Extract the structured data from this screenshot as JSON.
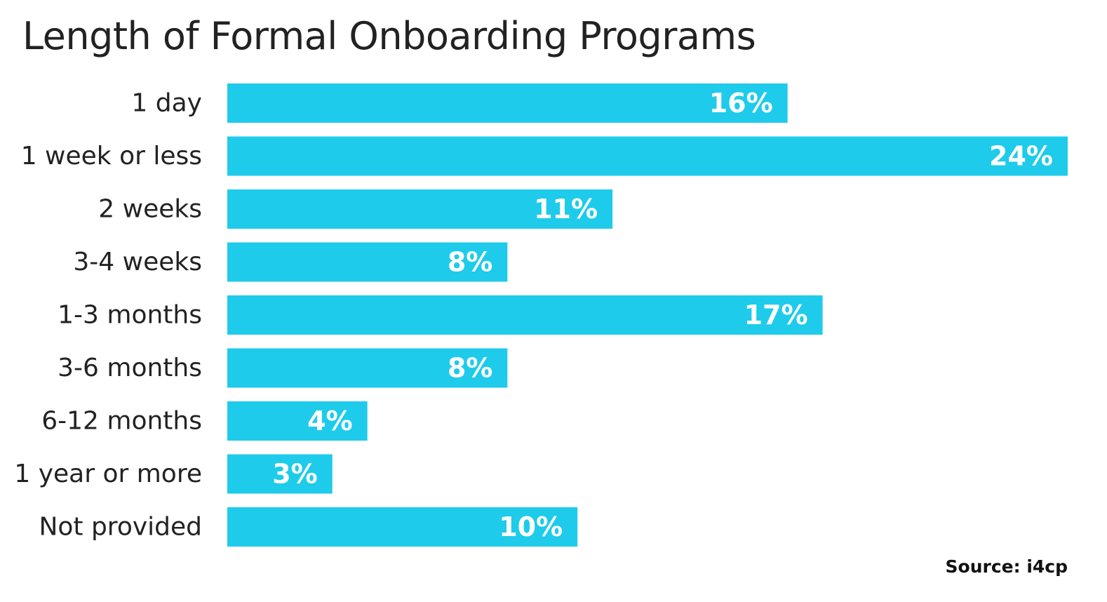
{
  "title": "Length of Formal Onboarding Programs",
  "source": "Source: i4cp",
  "colors": {
    "bar": "#1ECBEA",
    "bar_label": "#FFFFFF",
    "text": "#222222"
  },
  "chart_data": {
    "type": "bar",
    "orientation": "horizontal",
    "title": "Length of Formal Onboarding Programs",
    "categories": [
      "1 day",
      "1 week or less",
      "2 weeks",
      "3-4 weeks",
      "1-3 months",
      "3-6 months",
      "6-12 months",
      "1 year or more",
      "Not provided"
    ],
    "values": [
      16,
      24,
      11,
      8,
      17,
      8,
      4,
      3,
      10
    ],
    "value_labels": [
      "16%",
      "24%",
      "11%",
      "8%",
      "17%",
      "8%",
      "4%",
      "3%",
      "10%"
    ],
    "unit": "%",
    "xlim": [
      0,
      24
    ],
    "grid": false,
    "legend": "none",
    "source": "Source: i4cp"
  }
}
